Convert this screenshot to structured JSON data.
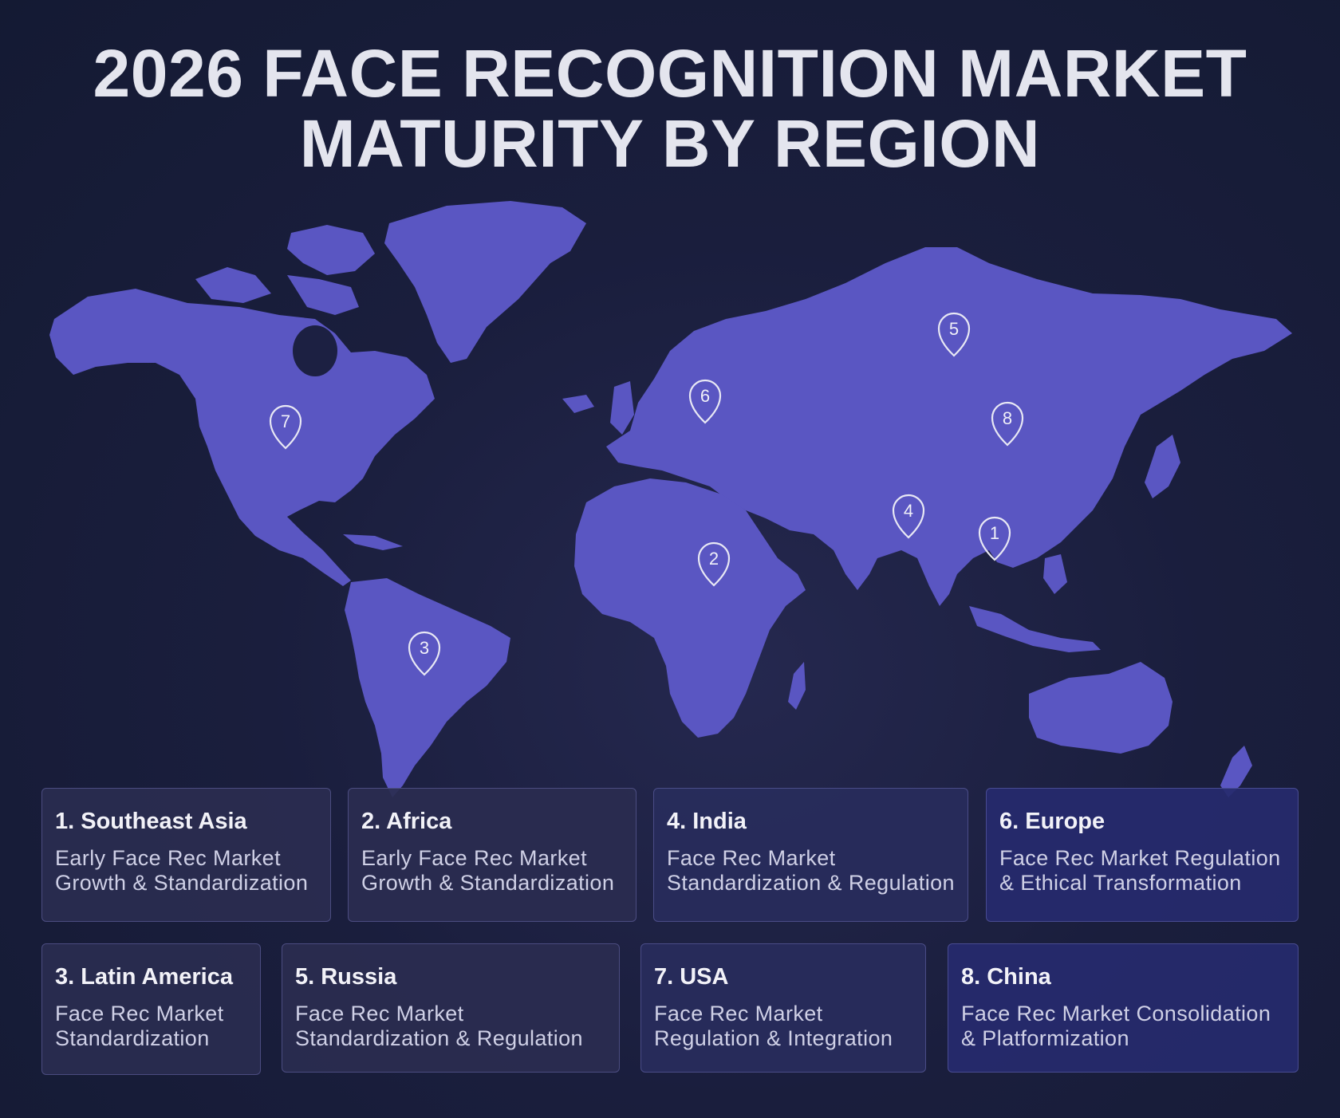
{
  "title": {
    "line1": "2026 FACE RECOGNITION MARKET",
    "line2": "MATURITY  BY REGION"
  },
  "colors": {
    "background": "#1a1e3d",
    "land": "#5a56c2",
    "pin": "#e8e8f4"
  },
  "markers": [
    {
      "number": "1",
      "region": "Southeast Asia"
    },
    {
      "number": "2",
      "region": "Africa"
    },
    {
      "number": "3",
      "region": "Latin America"
    },
    {
      "number": "4",
      "region": "India"
    },
    {
      "number": "5",
      "region": "Russia"
    },
    {
      "number": "6",
      "region": "Europe"
    },
    {
      "number": "7",
      "region": "USA"
    },
    {
      "number": "8",
      "region": "China"
    }
  ],
  "cards": [
    {
      "heading": "1. Southeast Asia",
      "line1": "Early Face Rec Market",
      "line2": "Growth & Standardization"
    },
    {
      "heading": "2. Africa",
      "line1": "Early Face Rec Market",
      "line2": "Growth & Standardization"
    },
    {
      "heading": "4. India",
      "line1": "Face Rec Market",
      "line2": "Standardization & Regulation"
    },
    {
      "heading": "6. Europe",
      "line1": "Face Rec Market Regulation",
      "line2": "& Ethical Transformation"
    },
    {
      "heading": "3. Latin America",
      "line1": "Face Rec Market",
      "line2": "Standardization"
    },
    {
      "heading": "5. Russia",
      "line1": "Face Rec Market",
      "line2": "Standardization & Regulation"
    },
    {
      "heading": "7. USA",
      "line1": "Face Rec Market",
      "line2": "Regulation & Integration"
    },
    {
      "heading": "8. China",
      "line1": "Face Rec Market Consolidation",
      "line2": "& Platformization"
    }
  ]
}
